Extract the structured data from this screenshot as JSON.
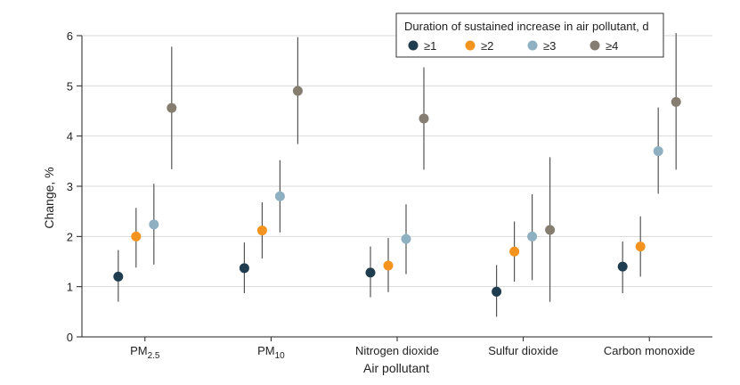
{
  "chart_data": {
    "type": "scatter",
    "subtype": "point-estimate-with-error-bars",
    "xlabel": "Air pollutant",
    "ylabel": "Change, %",
    "ylim": [
      0,
      6
    ],
    "yticks": [
      0,
      1,
      2,
      3,
      4,
      5,
      6
    ],
    "grid": "horizontal",
    "categories": [
      {
        "main": "PM",
        "sub": "2.5"
      },
      {
        "main": "PM",
        "sub": "10"
      },
      {
        "main": "Nitrogen dioxide",
        "sub": ""
      },
      {
        "main": "Sulfur dioxide",
        "sub": ""
      },
      {
        "main": "Carbon monoxide",
        "sub": ""
      }
    ],
    "legend": {
      "title": "Duration of sustained increase in air pollutant, d",
      "placement": "top-right"
    },
    "series": [
      {
        "name": "≥1",
        "color": "#1f3d4f",
        "values": [
          1.2,
          1.37,
          1.28,
          0.9,
          1.4
        ],
        "lower": [
          0.7,
          0.87,
          0.79,
          0.4,
          0.87
        ],
        "upper": [
          1.73,
          1.88,
          1.8,
          1.43,
          1.9
        ]
      },
      {
        "name": "≥2",
        "color": "#f4941e",
        "values": [
          2.0,
          2.12,
          1.42,
          1.7,
          1.8
        ],
        "lower": [
          1.38,
          1.56,
          0.89,
          1.1,
          1.2
        ],
        "upper": [
          2.57,
          2.68,
          1.97,
          2.3,
          2.4
        ]
      },
      {
        "name": "≥3",
        "color": "#8fb0c1",
        "values": [
          2.24,
          2.8,
          1.95,
          2.0,
          3.7
        ],
        "lower": [
          1.44,
          2.08,
          1.25,
          1.13,
          2.85
        ],
        "upper": [
          3.05,
          3.52,
          2.64,
          2.84,
          4.57
        ]
      },
      {
        "name": "≥4",
        "color": "#867d71",
        "values": [
          4.56,
          4.9,
          4.35,
          2.13,
          4.68
        ],
        "lower": [
          3.34,
          3.84,
          3.33,
          0.7,
          3.33
        ],
        "upper": [
          5.78,
          5.97,
          5.37,
          3.58,
          6.05
        ]
      }
    ]
  }
}
